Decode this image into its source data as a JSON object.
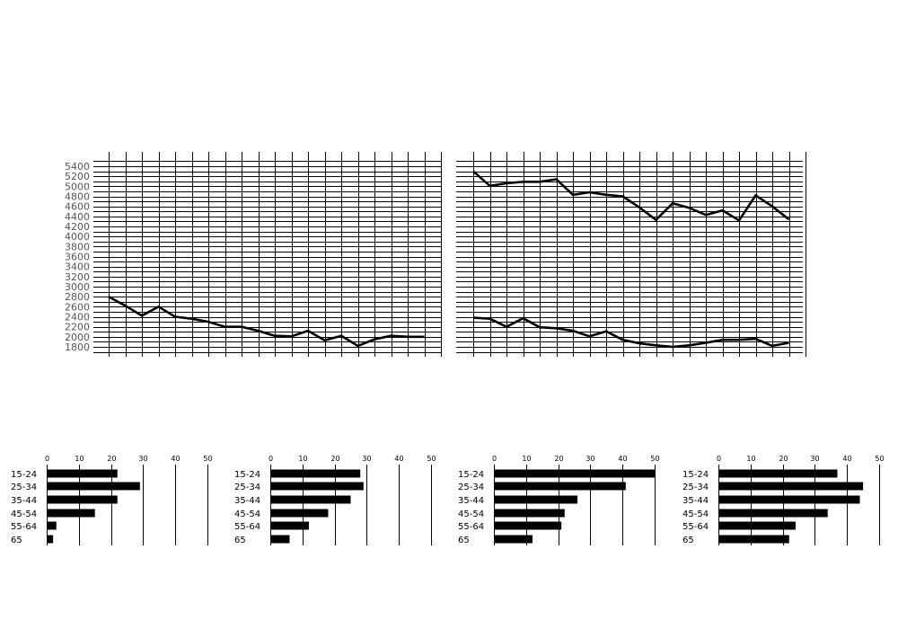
{
  "chart_data": [
    {
      "type": "line",
      "y_ticks": [
        "5400",
        "5200",
        "5000",
        "4800",
        "4600",
        "4400",
        "4200",
        "4000",
        "3800",
        "3600",
        "3400",
        "3200",
        "3000",
        "2800",
        "2600",
        "2400",
        "2200",
        "2000",
        "1800"
      ],
      "ylim": [
        1700,
        5500
      ],
      "series": [
        {
          "values": [
            2800,
            2620,
            2420,
            2600,
            2400,
            2360,
            2300,
            2200,
            2200,
            2120,
            2020,
            2010,
            2120,
            1930,
            2020,
            1820,
            1950,
            2020,
            2000,
            2000
          ]
        }
      ],
      "grid": true
    },
    {
      "type": "line",
      "ylim": [
        1700,
        5500
      ],
      "series": [
        {
          "values": [
            5300,
            5010,
            5060,
            5090,
            5090,
            5140,
            4830,
            4880,
            4830,
            4800,
            4580,
            4330,
            4660,
            4570,
            4430,
            4520,
            4320,
            4820,
            4600,
            4340
          ]
        },
        {
          "values": [
            2380,
            2360,
            2200,
            2370,
            2190,
            2170,
            2120,
            2010,
            2110,
            1940,
            1870,
            1830,
            1800,
            1830,
            1880,
            1940,
            1940,
            1960,
            1820,
            1880
          ]
        }
      ],
      "grid": true
    },
    {
      "type": "bar",
      "orientation": "horizontal",
      "x_ticks": [
        "0",
        "10",
        "20",
        "30",
        "40",
        "50"
      ],
      "xlim": [
        0,
        50
      ],
      "categories": [
        "15-24",
        "25-34",
        "35-44",
        "45-54",
        "55-64",
        "65"
      ],
      "values": [
        22,
        29,
        22,
        15,
        3,
        2
      ]
    },
    {
      "type": "bar",
      "orientation": "horizontal",
      "x_ticks": [
        "0",
        "10",
        "20",
        "30",
        "40",
        "50"
      ],
      "xlim": [
        0,
        50
      ],
      "categories": [
        "15-24",
        "25-34",
        "35-44",
        "45-54",
        "55-64",
        "65"
      ],
      "values": [
        28,
        29,
        25,
        18,
        12,
        6
      ]
    },
    {
      "type": "bar",
      "orientation": "horizontal",
      "x_ticks": [
        "0",
        "10",
        "20",
        "30",
        "40",
        "50"
      ],
      "xlim": [
        0,
        50
      ],
      "categories": [
        "15-24",
        "25-34",
        "35-44",
        "45-54",
        "55-64",
        "65"
      ],
      "values": [
        50,
        41,
        26,
        22,
        21,
        12
      ]
    },
    {
      "type": "bar",
      "orientation": "horizontal",
      "x_ticks": [
        "0",
        "10",
        "20",
        "30",
        "40",
        "50"
      ],
      "xlim": [
        0,
        50
      ],
      "categories": [
        "15-24",
        "25-34",
        "35-44",
        "45-54",
        "55-64",
        "65"
      ],
      "values": [
        37,
        45,
        44,
        34,
        24,
        22
      ]
    }
  ]
}
